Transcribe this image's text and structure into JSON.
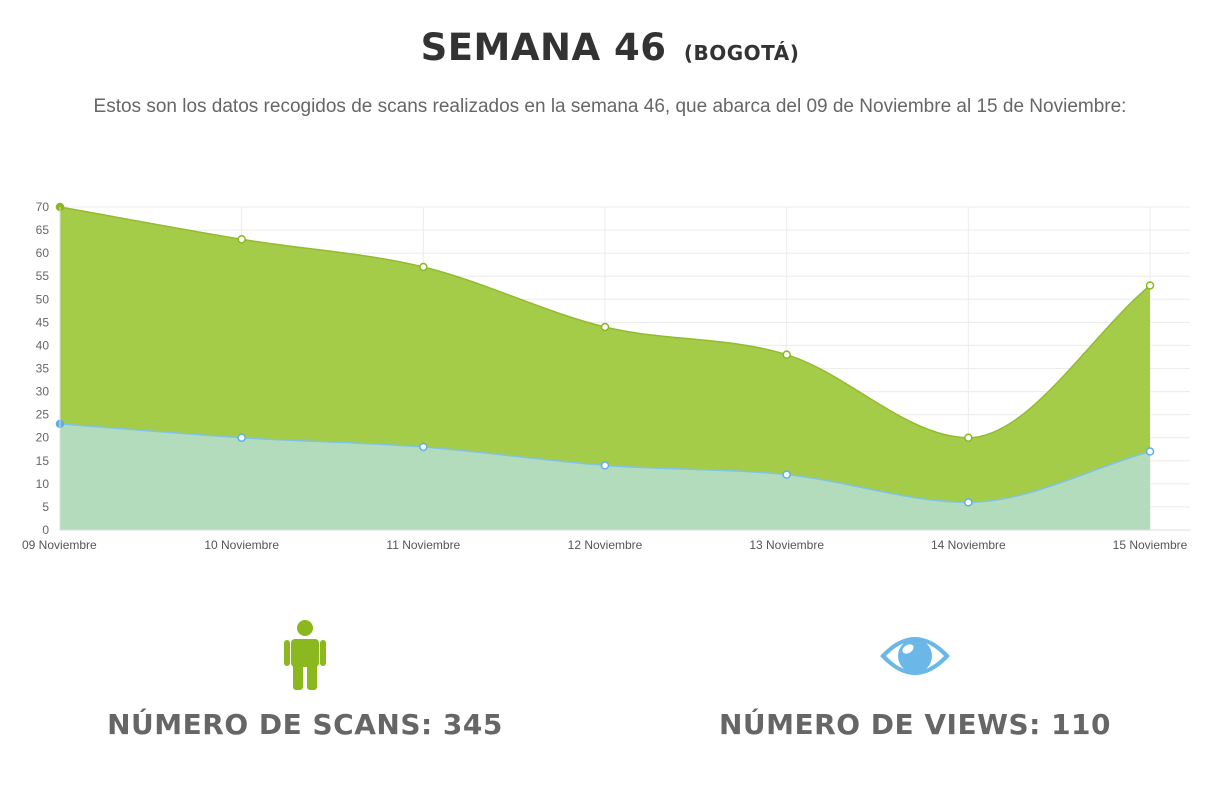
{
  "header": {
    "title": "SEMANA 46",
    "title_suffix": "(BOGOTÁ)",
    "description": "Estos son los datos recogidos de scans realizados en la semana 46, que abarca del 09 de Noviembre al 15 de Noviembre:"
  },
  "chart_data": {
    "type": "area",
    "categories": [
      "09 Noviembre",
      "10 Noviembre",
      "11 Noviembre",
      "12 Noviembre",
      "13 Noviembre",
      "14 Noviembre",
      "15 Noviembre"
    ],
    "series": [
      {
        "values": [
          70,
          63,
          57,
          44,
          38,
          20,
          53
        ],
        "color": "#9bc13c"
      },
      {
        "values": [
          23,
          20,
          18,
          14,
          12,
          6,
          17
        ],
        "color": "#6ab7e8"
      }
    ],
    "y_ticks": [
      0,
      5,
      10,
      15,
      20,
      25,
      30,
      35,
      40,
      45,
      50,
      55,
      60,
      65,
      70
    ],
    "ylim": [
      0,
      70
    ],
    "grid": true,
    "legend": "none"
  },
  "stats": {
    "scans": {
      "label": "NÚMERO DE SCANS: 345",
      "icon": "person-icon",
      "color": "#8ab81e"
    },
    "views": {
      "label": "NÚMERO DE VIEWS: 110",
      "icon": "eye-icon",
      "color": "#6ab7e8"
    }
  }
}
